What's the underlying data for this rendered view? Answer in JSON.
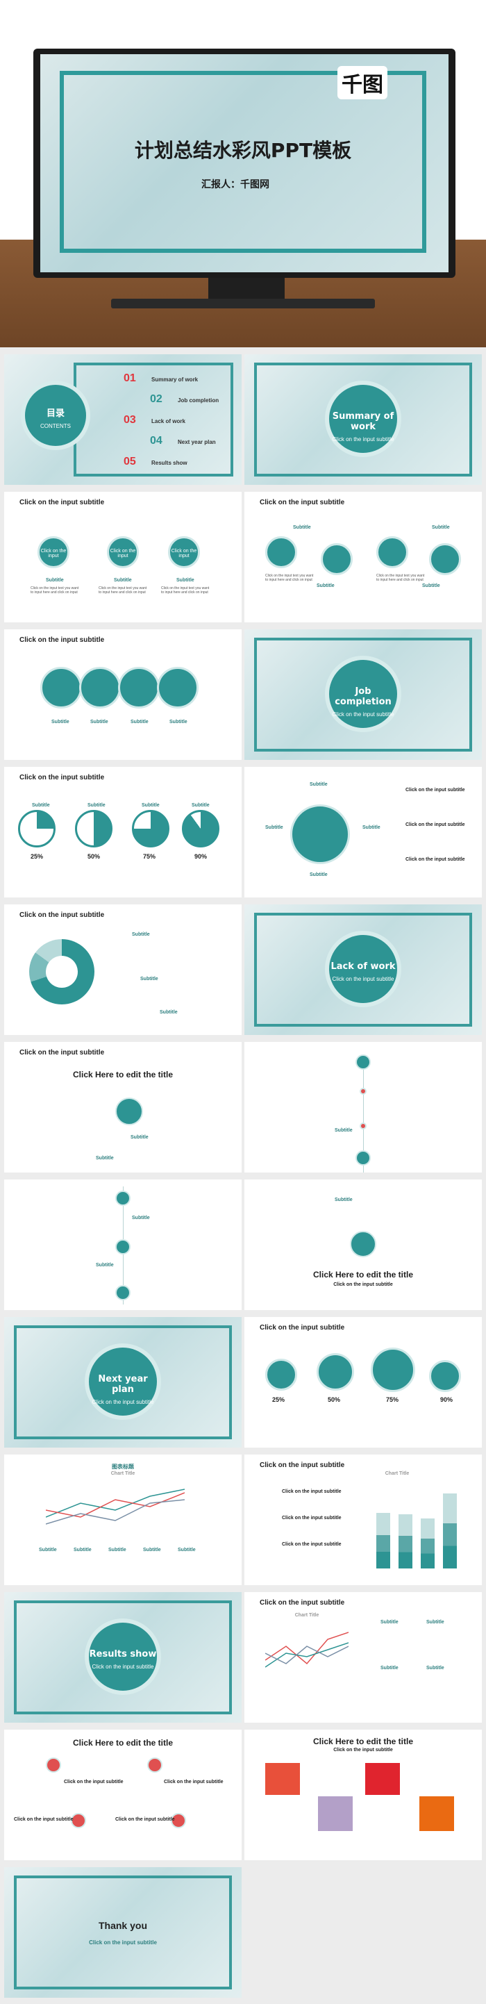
{
  "hero": {
    "logo": "千图",
    "title": "计划总结水彩风PPT模板",
    "reporter": "汇报人：千图网"
  },
  "slides": {
    "contents": {
      "title": "目录",
      "title_en": "CONTENTS",
      "items": [
        {
          "num": "01",
          "label": "Summary of work"
        },
        {
          "num": "02",
          "label": "Job completion"
        },
        {
          "num": "03",
          "label": "Lack of work"
        },
        {
          "num": "04",
          "label": "Next year plan"
        },
        {
          "num": "05",
          "label": "Results show"
        }
      ]
    },
    "summary": {
      "title": "Summary of work",
      "sub": "Click on the input subtitle"
    },
    "job": {
      "title": "Job completion",
      "sub": "Click on the input subtitle"
    },
    "lack": {
      "title": "Lack of work",
      "sub": "Click on the input subtitle"
    },
    "next": {
      "title": "Next year plan",
      "sub": "Click on the input subtitle"
    },
    "results": {
      "title": "Results show",
      "sub": "Click on the input subtitle"
    },
    "thanks": {
      "title": "Thank you",
      "sub": "Click on the input subtitle"
    },
    "header": "Click on the input subtitle",
    "edit_title": "Click Here to edit the title",
    "subtitle": "Subtitle",
    "circle_label": "Click on the input",
    "body_text": "Click on the input text you want to input here and click on input",
    "pcts": [
      "25%",
      "50%",
      "75%",
      "90%"
    ],
    "chart_title": "Chart Title",
    "chart_title_cn": "图表标题"
  }
}
